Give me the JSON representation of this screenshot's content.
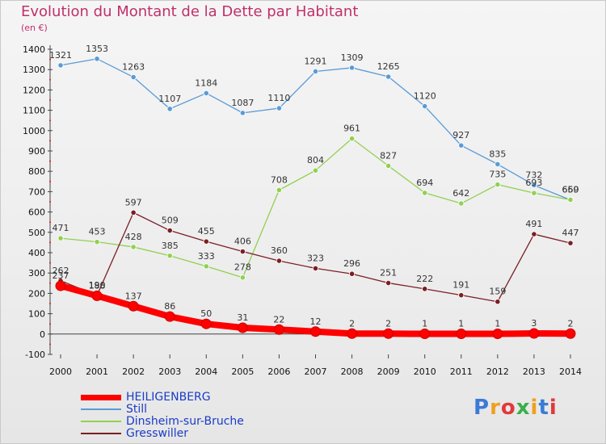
{
  "title": "Evolution du Montant de la Dette par Habitant",
  "subtitle": "(en €)",
  "logo_text": "Proxiti",
  "logo_colors": [
    "#3a7bd5",
    "#f0a020",
    "#e03a3a",
    "#38b04a",
    "#f0a020",
    "#3a7bd5",
    "#e03a3a"
  ],
  "chart_data": {
    "type": "line",
    "x": [
      2000,
      2001,
      2002,
      2003,
      2004,
      2005,
      2006,
      2007,
      2008,
      2009,
      2010,
      2011,
      2012,
      2013,
      2014
    ],
    "ylim": [
      -100,
      1400
    ],
    "yticks": [
      -100,
      0,
      100,
      200,
      300,
      400,
      500,
      600,
      700,
      800,
      900,
      1000,
      1100,
      1200,
      1300,
      1400
    ],
    "grid": false,
    "legend_position": "bottom-left",
    "series": [
      {
        "name": "HEILIGENBERG",
        "color": "#ff0000",
        "values": [
          237,
          188,
          137,
          86,
          50,
          31,
          22,
          12,
          2,
          2,
          1,
          1,
          1,
          3,
          2
        ],
        "labels": [
          "237",
          "188",
          "137",
          "86",
          "50",
          "31",
          "22",
          "12",
          "2",
          "2",
          "1",
          "1",
          "1",
          "3",
          "2"
        ]
      },
      {
        "name": "Still",
        "color": "#5b9bd5",
        "values": [
          1321,
          1353,
          1263,
          1107,
          1184,
          1087,
          1110,
          1291,
          1309,
          1265,
          1120,
          927,
          835,
          732,
          659
        ],
        "labels": [
          "1321",
          "1353",
          "1263",
          "1107",
          "1184",
          "1087",
          "1110",
          "1291",
          "1309",
          "1265",
          "1120",
          "927",
          "835",
          "732",
          "659"
        ]
      },
      {
        "name": "Dinsheim-sur-Bruche",
        "color": "#92d050",
        "values": [
          471,
          453,
          428,
          385,
          333,
          278,
          708,
          804,
          961,
          827,
          694,
          642,
          735,
          693,
          660
        ],
        "labels": [
          "471",
          "453",
          "428",
          "385",
          "333",
          "278",
          "708",
          "804",
          "961",
          "827",
          "694",
          "642",
          "735",
          "693",
          "660"
        ]
      },
      {
        "name": "Gresswiller",
        "color": "#7b1f24",
        "values": [
          262,
          190,
          597,
          509,
          455,
          406,
          360,
          323,
          296,
          251,
          222,
          191,
          159,
          491,
          447
        ],
        "labels": [
          "262",
          "190",
          "597",
          "509",
          "455",
          "406",
          "360",
          "323",
          "296",
          "251",
          "222",
          "191",
          "159",
          "491",
          "447"
        ]
      }
    ]
  }
}
